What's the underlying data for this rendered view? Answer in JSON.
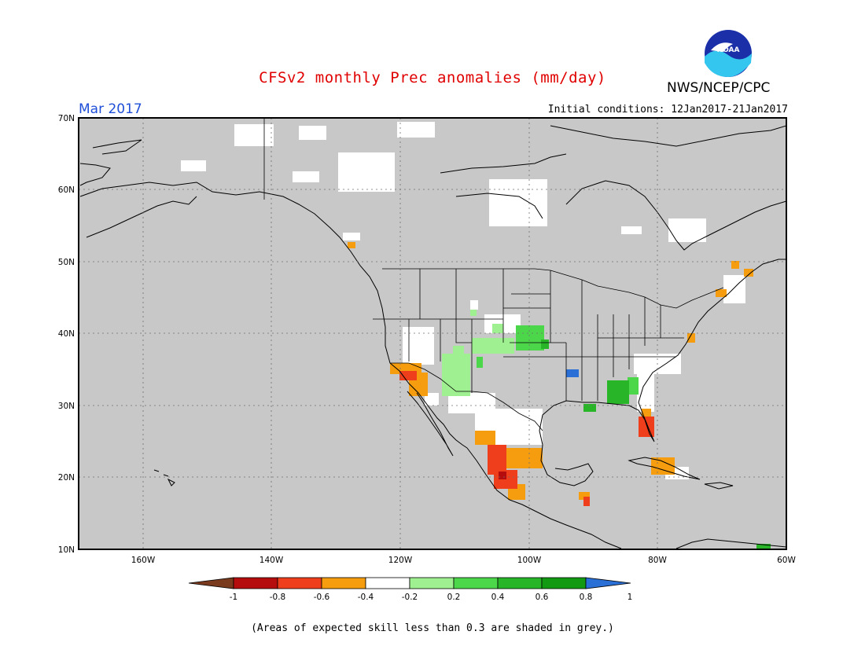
{
  "header": {
    "title": "CFSv2 monthly Prec anomalies (mm/day)",
    "agency": "NWS/NCEP/CPC",
    "logo_text": "NOAA",
    "month": "Mar 2017",
    "initial_conditions": "Initial conditions: 12Jan2017-21Jan2017"
  },
  "map": {
    "region": "North America",
    "lon_range": [
      -170,
      -60
    ],
    "lat_range": [
      10,
      70
    ],
    "lat_ticks": [
      "70N",
      "60N",
      "50N",
      "40N",
      "30N",
      "20N",
      "10N"
    ],
    "lon_ticks": [
      "160W",
      "140W",
      "120W",
      "100W",
      "80W",
      "60W"
    ],
    "background_color": "#c8c8c8",
    "gridlines": "dotted"
  },
  "colorbar": {
    "labels": [
      "-1",
      "-0.8",
      "-0.6",
      "-0.4",
      "-0.2",
      "0.2",
      "0.4",
      "0.6",
      "0.8",
      "1"
    ],
    "colors": [
      "#7a3a1e",
      "#b50d0d",
      "#ee3e1b",
      "#f59d0f",
      "#ffffff",
      "#9ef090",
      "#4cd64a",
      "#28b628",
      "#139a13",
      "#2a6fd6"
    ]
  },
  "footer": {
    "note": "(Areas of expected skill less than 0.3 are shaded in grey.)"
  }
}
